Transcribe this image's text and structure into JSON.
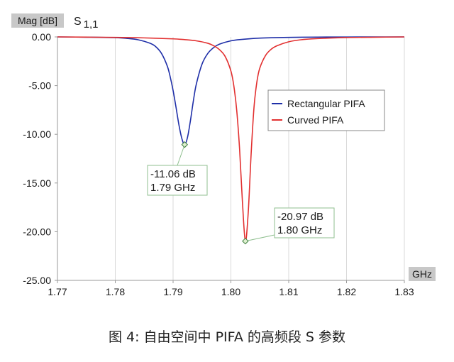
{
  "chart_data": {
    "type": "line",
    "title": "S1,1",
    "title_main": "S",
    "title_sub": "1,1",
    "ylabel": "Mag [dB]",
    "xlabel": "GHz",
    "xlim": [
      1.77,
      1.83
    ],
    "ylim": [
      -25,
      0
    ],
    "x_ticks": [
      1.77,
      1.78,
      1.79,
      1.8,
      1.81,
      1.82,
      1.83
    ],
    "x_tick_labels": [
      "1.77",
      "1.78",
      "1.79",
      "1.80",
      "1.81",
      "1.82",
      "1.83"
    ],
    "y_ticks": [
      0,
      -5,
      -10,
      -15,
      -20,
      -25
    ],
    "y_tick_labels": [
      "0.00",
      "-5.00",
      "-10.00",
      "-15.00",
      "-20.00",
      "-25.00"
    ],
    "grid": "vertical",
    "legend_placement": "center-right",
    "series": [
      {
        "name": "Rectangular PIFA",
        "color": "#1f2fa8",
        "x": [
          1.77,
          1.775,
          1.78,
          1.782,
          1.784,
          1.786,
          1.787,
          1.788,
          1.789,
          1.7895,
          1.79,
          1.7905,
          1.791,
          1.7915,
          1.792,
          1.7925,
          1.793,
          1.7935,
          1.794,
          1.795,
          1.796,
          1.797,
          1.798,
          1.8,
          1.802,
          1.805,
          1.81,
          1.815,
          1.82,
          1.83
        ],
        "y": [
          0,
          -0.03,
          -0.08,
          -0.15,
          -0.3,
          -0.65,
          -1.0,
          -1.7,
          -3.0,
          -4.1,
          -5.5,
          -7.2,
          -9.0,
          -10.4,
          -11.06,
          -10.3,
          -8.6,
          -6.6,
          -4.9,
          -2.8,
          -1.7,
          -1.1,
          -0.75,
          -0.4,
          -0.25,
          -0.12,
          -0.05,
          -0.02,
          -0.01,
          0
        ]
      },
      {
        "name": "Curved PIFA",
        "color": "#e23030",
        "x": [
          1.77,
          1.78,
          1.785,
          1.79,
          1.792,
          1.794,
          1.796,
          1.797,
          1.798,
          1.799,
          1.8,
          1.8005,
          1.801,
          1.8015,
          1.802,
          1.8025,
          1.803,
          1.8035,
          1.804,
          1.8045,
          1.805,
          1.806,
          1.807,
          1.808,
          1.81,
          1.812,
          1.815,
          1.82,
          1.825,
          1.83
        ],
        "y": [
          0,
          -0.05,
          -0.1,
          -0.2,
          -0.28,
          -0.4,
          -0.65,
          -0.9,
          -1.3,
          -2.0,
          -3.5,
          -5.0,
          -7.5,
          -11.5,
          -17.0,
          -20.97,
          -18.0,
          -12.0,
          -7.2,
          -4.6,
          -3.2,
          -1.9,
          -1.25,
          -0.9,
          -0.5,
          -0.3,
          -0.17,
          -0.07,
          -0.03,
          0
        ]
      }
    ],
    "annotations": [
      {
        "x": 1.792,
        "y": -11.06,
        "line1": "-11.06 dB",
        "line2": "1.79 GHz",
        "color": "#1f2fa8"
      },
      {
        "x": 1.8025,
        "y": -20.97,
        "line1": "-20.97 dB",
        "line2": "1.80 GHz",
        "color": "#e23030"
      }
    ]
  },
  "caption": "图 4: 自由空间中 PIFA 的高频段 S 参数"
}
